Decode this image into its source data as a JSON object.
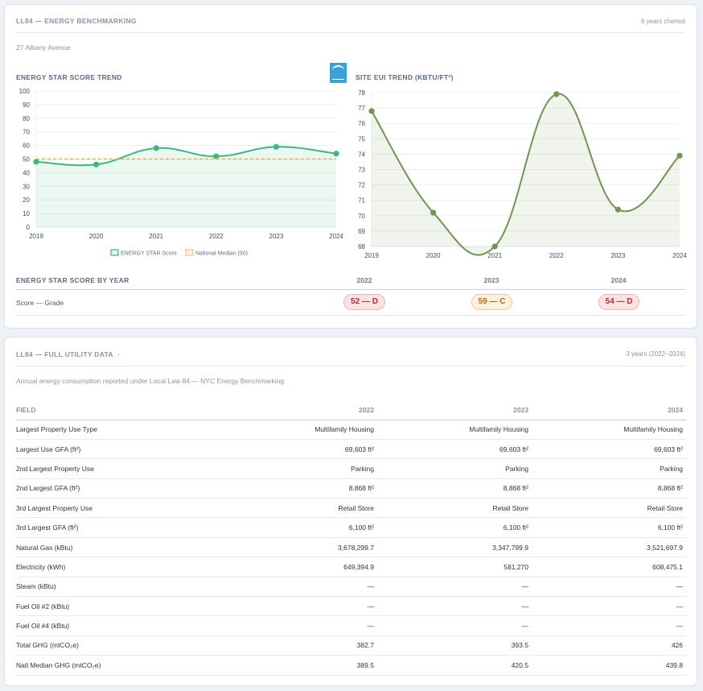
{
  "card1": {
    "title": "LL84 — ENERGY BENCHMARKING",
    "right_note": "6 years charted",
    "address": "27 Albany Avenue",
    "score_trend_title": "ENERGY STAR SCORE TREND",
    "eui_trend_title": "SITE EUI TREND (KBTU/FT²)",
    "by_year_title": "ENERGY STAR SCORE BY YEAR",
    "score_grade_label": "Score — Grade",
    "badges": [
      {
        "year": "2022",
        "text": "52 — D",
        "grade": "D"
      },
      {
        "year": "2023",
        "text": "59 — C",
        "grade": "C"
      },
      {
        "year": "2024",
        "text": "54 — D",
        "grade": "D"
      }
    ]
  },
  "chart_data": [
    {
      "type": "line",
      "title": "ENERGY STAR SCORE TREND",
      "x": [
        "2019",
        "2020",
        "2021",
        "2022",
        "2023",
        "2024"
      ],
      "series": [
        {
          "name": "ENERGY STAR Score",
          "values": [
            48,
            46,
            58,
            52,
            59,
            54
          ],
          "color": "#3db87a"
        },
        {
          "name": "National Median (50)",
          "values": [
            50,
            50,
            50,
            50,
            50,
            50
          ],
          "color": "#e8b04a"
        }
      ],
      "ylim": [
        0,
        100
      ],
      "yticks": [
        0,
        10,
        20,
        30,
        40,
        50,
        60,
        70,
        80,
        90,
        100
      ],
      "grid": true,
      "legend": "bottom"
    },
    {
      "type": "area",
      "title": "SITE EUI TREND (KBTU/FT²)",
      "x": [
        "2019",
        "2020",
        "2021",
        "2022",
        "2023",
        "2024"
      ],
      "series": [
        {
          "values": [
            76.8,
            70.2,
            68.0,
            77.9,
            70.4,
            73.9
          ],
          "color": "#6f9650"
        }
      ],
      "ylim": [
        68,
        78
      ],
      "yticks": [
        68,
        69,
        70,
        71,
        72,
        73,
        74,
        75,
        76,
        77,
        78
      ],
      "grid": true
    }
  ],
  "card2": {
    "title": "LL84 — FULL UTILITY DATA",
    "title_suffix": "·",
    "right_note": "3 years (2022–2024)",
    "description": "Annual energy consumption reported under Local Law 84 — NYC Energy Benchmarking",
    "columns": [
      "FIELD",
      "2022",
      "2023",
      "2024"
    ],
    "rows": [
      [
        "Largest Property Use Type",
        "Multifamily Housing",
        "Multifamily Housing",
        "Multifamily Housing"
      ],
      [
        "Largest Use GFA (ft²)",
        "69,603 ft²",
        "69,603 ft²",
        "69,603 ft²"
      ],
      [
        "2nd Largest Property Use",
        "Parking",
        "Parking",
        "Parking"
      ],
      [
        "2nd Largest GFA (ft²)",
        "8,868 ft²",
        "8,868 ft²",
        "8,868 ft²"
      ],
      [
        "3rd Largest Property Use",
        "Retail Store",
        "Retail Store",
        "Retail Store"
      ],
      [
        "3rd Largest GFA (ft²)",
        "6,100 ft²",
        "6,100 ft²",
        "6,100 ft²"
      ],
      [
        "Natural Gas (kBtu)",
        "3,678,299.7",
        "3,347,799.9",
        "3,521,697.9"
      ],
      [
        "Electricity (kWh)",
        "649,394.9",
        "581,270",
        "608,475.1"
      ],
      [
        "Steam (kBtu)",
        "—",
        "—",
        "—"
      ],
      [
        "Fuel Oil #2 (kBtu)",
        "—",
        "—",
        "—"
      ],
      [
        "Fuel Oil #4 (kBtu)",
        "—",
        "—",
        "—"
      ],
      [
        "Total GHG (mtCO₂e)",
        "382.7",
        "393.5",
        "426"
      ],
      [
        "Natl Median GHG (mtCO₂e)",
        "389.5",
        "420.5",
        "439.8"
      ]
    ]
  }
}
